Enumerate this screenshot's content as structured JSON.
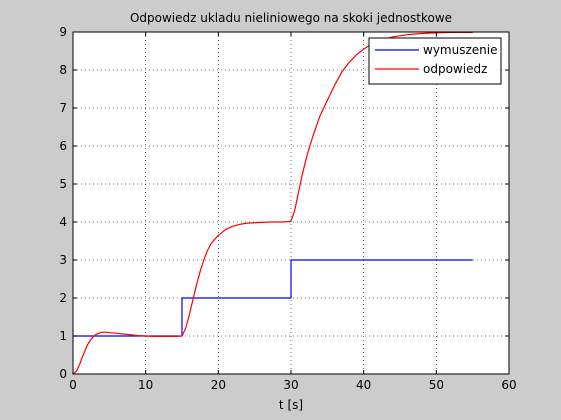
{
  "chart_data": {
    "type": "line",
    "title": "Odpowiedz ukladu nieliniowego na skoki jednostkowe",
    "xlabel": "t [s]",
    "ylabel": "",
    "xlim": [
      0,
      60
    ],
    "ylim": [
      0,
      9
    ],
    "xticks": [
      "0",
      "10",
      "20",
      "30",
      "40",
      "50",
      "60"
    ],
    "yticks": [
      "0",
      "1",
      "2",
      "3",
      "4",
      "5",
      "6",
      "7",
      "8",
      "9"
    ],
    "grid": true,
    "legend": "top-right",
    "series": [
      {
        "name": "wymuszenie",
        "color": "#0000ff",
        "x": [
          0,
          15,
          15,
          30,
          30,
          55
        ],
        "y": [
          1,
          1,
          2,
          2,
          3,
          3
        ]
      },
      {
        "name": "odpowiedz",
        "color": "#ff0000",
        "x": [
          0,
          0.5,
          1,
          1.5,
          2,
          2.5,
          3,
          3.5,
          4,
          4.5,
          5,
          6,
          7,
          8,
          9,
          10,
          11,
          12,
          13,
          14,
          15,
          15.5,
          16,
          16.5,
          17,
          17.5,
          18,
          18.5,
          19,
          20,
          21,
          22,
          23,
          24,
          25,
          26,
          27,
          28,
          29,
          30,
          30.5,
          31,
          31.5,
          32,
          32.5,
          33,
          34,
          35,
          36,
          37,
          38,
          39,
          40,
          41,
          42,
          43,
          44,
          45,
          46,
          48,
          50,
          52,
          55
        ],
        "y": [
          0,
          0.08,
          0.3,
          0.55,
          0.77,
          0.92,
          1.02,
          1.07,
          1.1,
          1.1,
          1.09,
          1.07,
          1.05,
          1.03,
          1.01,
          1.0,
          0.99,
          0.99,
          0.99,
          0.99,
          1.0,
          1.2,
          1.55,
          1.95,
          2.35,
          2.7,
          3.0,
          3.25,
          3.43,
          3.65,
          3.8,
          3.89,
          3.94,
          3.97,
          3.98,
          3.99,
          4.0,
          4.0,
          4.0,
          4.02,
          4.3,
          4.75,
          5.2,
          5.6,
          5.95,
          6.25,
          6.8,
          7.2,
          7.6,
          7.95,
          8.2,
          8.4,
          8.55,
          8.67,
          8.75,
          8.82,
          8.87,
          8.9,
          8.93,
          8.96,
          8.98,
          8.99,
          8.99
        ]
      }
    ]
  }
}
